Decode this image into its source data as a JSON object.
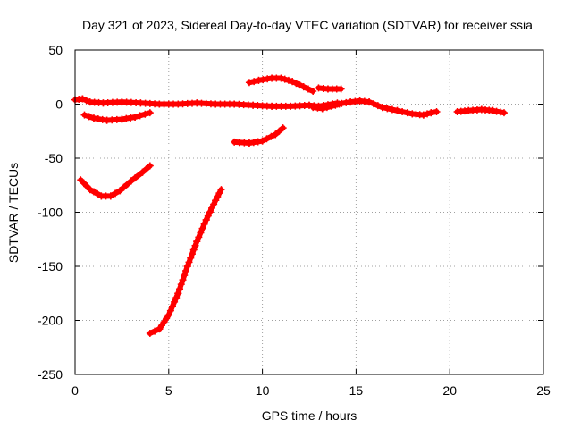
{
  "chart_data": {
    "type": "scatter",
    "title": "Day 321 of 2023, Sidereal Day-to-day VTEC variation (SDTVAR) for receiver ssia",
    "xlabel": "GPS time / hours",
    "ylabel": "SDTVAR / TECUs",
    "xlim": [
      0,
      25
    ],
    "ylim": [
      -250,
      50
    ],
    "xticks": [
      0,
      5,
      10,
      15,
      20,
      25
    ],
    "yticks": [
      50,
      0,
      -50,
      -100,
      -150,
      -200,
      -250
    ],
    "grid": true,
    "colors": {
      "series": "#ff0000",
      "grid": "#a0a0a0",
      "axis": "#000000"
    },
    "segments": [
      {
        "points": [
          [
            0,
            4
          ],
          [
            0.4,
            5
          ],
          [
            0.8,
            2
          ],
          [
            1.5,
            1
          ],
          [
            2.5,
            2
          ],
          [
            3.5,
            1
          ],
          [
            4.5,
            0
          ],
          [
            5.5,
            0
          ],
          [
            6.5,
            1
          ],
          [
            7.5,
            0
          ],
          [
            8.5,
            0
          ],
          [
            9.5,
            -1
          ],
          [
            10.5,
            -2
          ],
          [
            11.5,
            -2
          ],
          [
            12.5,
            -1
          ],
          [
            13,
            -2
          ],
          [
            14,
            1
          ]
        ]
      },
      {
        "points": [
          [
            0.5,
            -10
          ],
          [
            1,
            -13
          ],
          [
            1.7,
            -15
          ],
          [
            2.5,
            -14
          ],
          [
            3.2,
            -12
          ],
          [
            4,
            -8
          ]
        ]
      },
      {
        "points": [
          [
            0.3,
            -70
          ],
          [
            0.8,
            -79
          ],
          [
            1.4,
            -85
          ],
          [
            1.9,
            -85
          ],
          [
            2.4,
            -80
          ],
          [
            3,
            -71
          ],
          [
            3.6,
            -63
          ],
          [
            4,
            -57
          ]
        ]
      },
      {
        "points": [
          [
            4,
            -212
          ],
          [
            4.5,
            -208
          ],
          [
            5,
            -195
          ],
          [
            5.5,
            -175
          ],
          [
            6,
            -150
          ],
          [
            6.5,
            -127
          ],
          [
            7,
            -107
          ],
          [
            7.5,
            -89
          ],
          [
            7.8,
            -79
          ]
        ]
      },
      {
        "points": [
          [
            8.5,
            -35
          ],
          [
            9.3,
            -36
          ],
          [
            10,
            -34
          ],
          [
            10.7,
            -28
          ],
          [
            11.1,
            -22
          ]
        ]
      },
      {
        "points": [
          [
            9.3,
            20
          ],
          [
            9.8,
            22
          ],
          [
            10.5,
            24
          ],
          [
            11,
            24
          ],
          [
            11.6,
            21
          ],
          [
            12.2,
            16
          ],
          [
            12.7,
            12
          ]
        ]
      },
      {
        "points": [
          [
            12.7,
            -3
          ],
          [
            13.2,
            -4
          ],
          [
            13.7,
            -2
          ],
          [
            14.1,
            0
          ]
        ]
      },
      {
        "points": [
          [
            13,
            15
          ],
          [
            13.5,
            14
          ],
          [
            14.2,
            14
          ]
        ]
      },
      {
        "points": [
          [
            14,
            0
          ],
          [
            14.7,
            2
          ],
          [
            15.2,
            3
          ],
          [
            15.7,
            2
          ],
          [
            16.4,
            -3
          ],
          [
            17.2,
            -6
          ],
          [
            18,
            -9
          ],
          [
            18.6,
            -10
          ],
          [
            19,
            -8
          ],
          [
            19.3,
            -7
          ]
        ]
      },
      {
        "points": [
          [
            20.4,
            -7
          ],
          [
            21,
            -6
          ],
          [
            21.7,
            -5
          ],
          [
            22.3,
            -6
          ],
          [
            22.9,
            -8
          ]
        ]
      }
    ]
  }
}
